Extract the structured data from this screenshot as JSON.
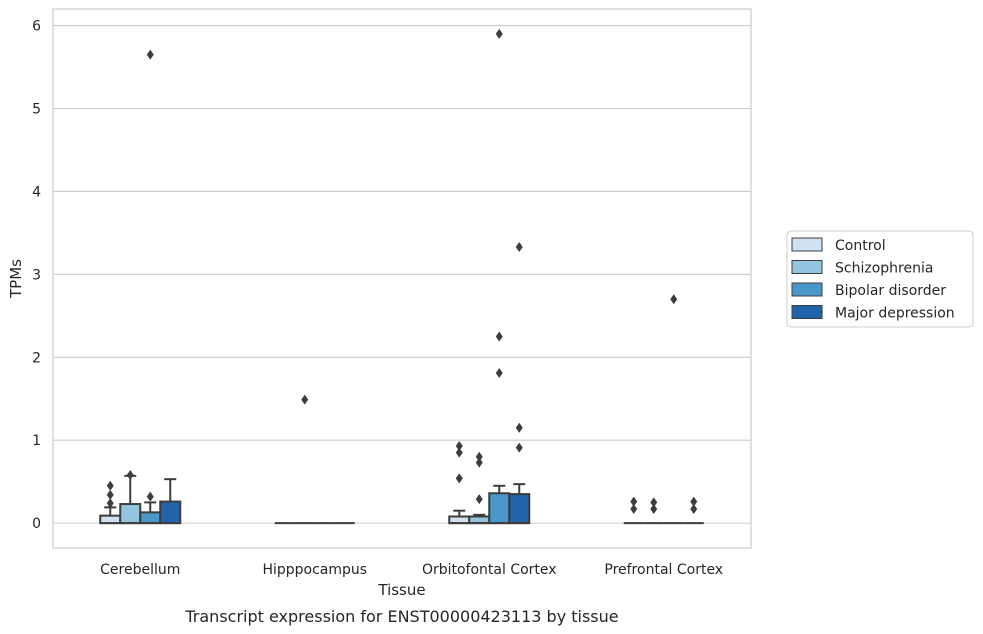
{
  "chart_data": {
    "type": "box",
    "caption": "Transcript expression for ENST00000423113 by tissue",
    "xlabel": "Tissue",
    "ylabel": "TPMs",
    "ylim": [
      -0.3,
      6.2
    ],
    "yticks": [
      0,
      1,
      2,
      3,
      4,
      5,
      6
    ],
    "grid": "horizontal",
    "legend_position": "right",
    "categories": [
      "Cerebellum",
      "Hipppocampus",
      "Orbitofontal Cortex",
      "Prefrontal Cortex"
    ],
    "series": [
      {
        "name": "Control",
        "color": "#d0e1f2",
        "boxes": [
          {
            "q1": 0,
            "median": 0,
            "q3": 0.09,
            "whisker_low": 0,
            "whisker_high": 0.19,
            "outliers": [
              0.24,
              0.34,
              0.45
            ]
          },
          {
            "q1": 0,
            "median": 0,
            "q3": 0,
            "whisker_low": 0,
            "whisker_high": 0,
            "outliers": []
          },
          {
            "q1": 0,
            "median": 0,
            "q3": 0.08,
            "whisker_low": 0,
            "whisker_high": 0.15,
            "outliers": [
              0.54,
              0.85,
              0.93
            ]
          },
          {
            "q1": 0,
            "median": 0,
            "q3": 0,
            "whisker_low": 0,
            "whisker_high": 0,
            "outliers": [
              0.17,
              0.26
            ]
          }
        ]
      },
      {
        "name": "Schizophrenia",
        "color": "#94c4df",
        "boxes": [
          {
            "q1": 0,
            "median": 0,
            "q3": 0.23,
            "whisker_low": 0,
            "whisker_high": 0.57,
            "outliers": [
              0.58
            ]
          },
          {
            "q1": 0,
            "median": 0,
            "q3": 0,
            "whisker_low": 0,
            "whisker_high": 0,
            "outliers": [
              1.49
            ]
          },
          {
            "q1": 0,
            "median": 0,
            "q3": 0.08,
            "whisker_low": 0,
            "whisker_high": 0.1,
            "outliers": [
              0.29,
              0.73,
              0.8
            ]
          },
          {
            "q1": 0,
            "median": 0,
            "q3": 0,
            "whisker_low": 0,
            "whisker_high": 0,
            "outliers": [
              0.17,
              0.25
            ]
          }
        ]
      },
      {
        "name": "Bipolar disorder",
        "color": "#4a98c9",
        "boxes": [
          {
            "q1": 0,
            "median": 0,
            "q3": 0.13,
            "whisker_low": 0,
            "whisker_high": 0.25,
            "outliers": [
              0.32,
              5.65
            ]
          },
          {
            "q1": 0,
            "median": 0,
            "q3": 0,
            "whisker_low": 0,
            "whisker_high": 0,
            "outliers": []
          },
          {
            "q1": 0,
            "median": 0,
            "q3": 0.36,
            "whisker_low": 0,
            "whisker_high": 0.45,
            "outliers": [
              1.81,
              2.25,
              5.9
            ]
          },
          {
            "q1": 0,
            "median": 0,
            "q3": 0,
            "whisker_low": 0,
            "whisker_high": 0,
            "outliers": [
              2.7
            ]
          }
        ]
      },
      {
        "name": "Major depression",
        "color": "#2164ab",
        "boxes": [
          {
            "q1": 0,
            "median": 0,
            "q3": 0.26,
            "whisker_low": 0,
            "whisker_high": 0.53,
            "outliers": []
          },
          {
            "q1": 0,
            "median": 0,
            "q3": 0,
            "whisker_low": 0,
            "whisker_high": 0,
            "outliers": []
          },
          {
            "q1": 0,
            "median": 0,
            "q3": 0.35,
            "whisker_low": 0,
            "whisker_high": 0.47,
            "outliers": [
              0.91,
              1.15,
              3.33
            ]
          },
          {
            "q1": 0,
            "median": 0,
            "q3": 0,
            "whisker_low": 0,
            "whisker_high": 0,
            "outliers": [
              0.17,
              0.26
            ]
          }
        ]
      }
    ]
  }
}
